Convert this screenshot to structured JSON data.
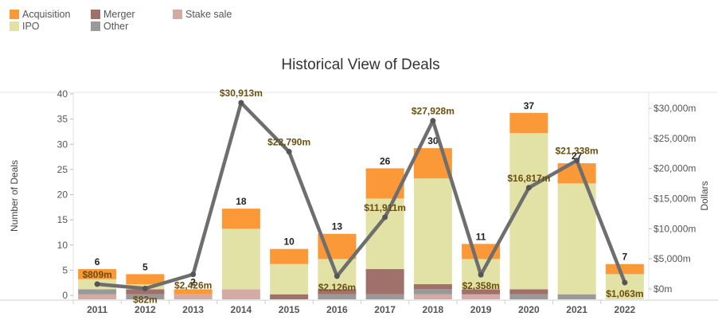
{
  "chart_data": {
    "type": "bar",
    "title": "Historical View of Deals",
    "xlabel": "",
    "ylabel": "Number of Deals",
    "y2label": "Dollars",
    "ylim": [
      0,
      40
    ],
    "y2lim": [
      0,
      32000
    ],
    "yticks": [
      0,
      5,
      10,
      15,
      20,
      25,
      30,
      35,
      40
    ],
    "y2ticks": [
      0,
      5000,
      10000,
      15000,
      20000,
      25000,
      30000
    ],
    "y2tick_labels": [
      "$0m",
      "$5,000m",
      "$10,000m",
      "$15,000m",
      "$20,000m",
      "$25,000m",
      "$30,000m"
    ],
    "legend_position": "top-left",
    "categories": [
      "2011",
      "2012",
      "2013",
      "2014",
      "2015",
      "2016",
      "2017",
      "2018",
      "2019",
      "2020",
      "2021",
      "2022"
    ],
    "series": [
      {
        "name": "Stake sale",
        "color": "#d4aaa5",
        "values": [
          1,
          0,
          1,
          2,
          0,
          0,
          0,
          1,
          1,
          0,
          0,
          0
        ]
      },
      {
        "name": "Other",
        "color": "#999999",
        "values": [
          1,
          1,
          0,
          0,
          0,
          1,
          1,
          1,
          0,
          1,
          1,
          0
        ]
      },
      {
        "name": "Merger",
        "color": "#a0706a",
        "values": [
          0,
          1,
          0,
          0,
          1,
          1,
          5,
          1,
          1,
          1,
          0,
          0
        ]
      },
      {
        "name": "IPO",
        "color": "#e2e1a6",
        "values": [
          2,
          1,
          0,
          12,
          6,
          6,
          14,
          21,
          6,
          31,
          22,
          5
        ]
      },
      {
        "name": "Acquisition",
        "color": "#fb9939",
        "values": [
          2,
          2,
          1,
          4,
          3,
          5,
          6,
          6,
          3,
          4,
          4,
          2
        ]
      }
    ],
    "totals": [
      6,
      5,
      2,
      18,
      10,
      13,
      26,
      30,
      11,
      37,
      27,
      7
    ],
    "line_series": {
      "name": "Dollars",
      "color": "#6e6e6e",
      "values": [
        809,
        82,
        2426,
        30913,
        22790,
        2126,
        11911,
        27928,
        2358,
        16817,
        21338,
        1063
      ],
      "labels": [
        "$809m",
        "$82m",
        "$2,426m",
        "$30,913m",
        "$22,790m",
        "$2,126m",
        "$11,911m",
        "$27,928m",
        "$2,358m",
        "$16,817m",
        "$21,338m",
        "$1,063m"
      ]
    },
    "legend": [
      "Acquisition",
      "Merger",
      "Stake sale",
      "IPO",
      "Other"
    ]
  }
}
